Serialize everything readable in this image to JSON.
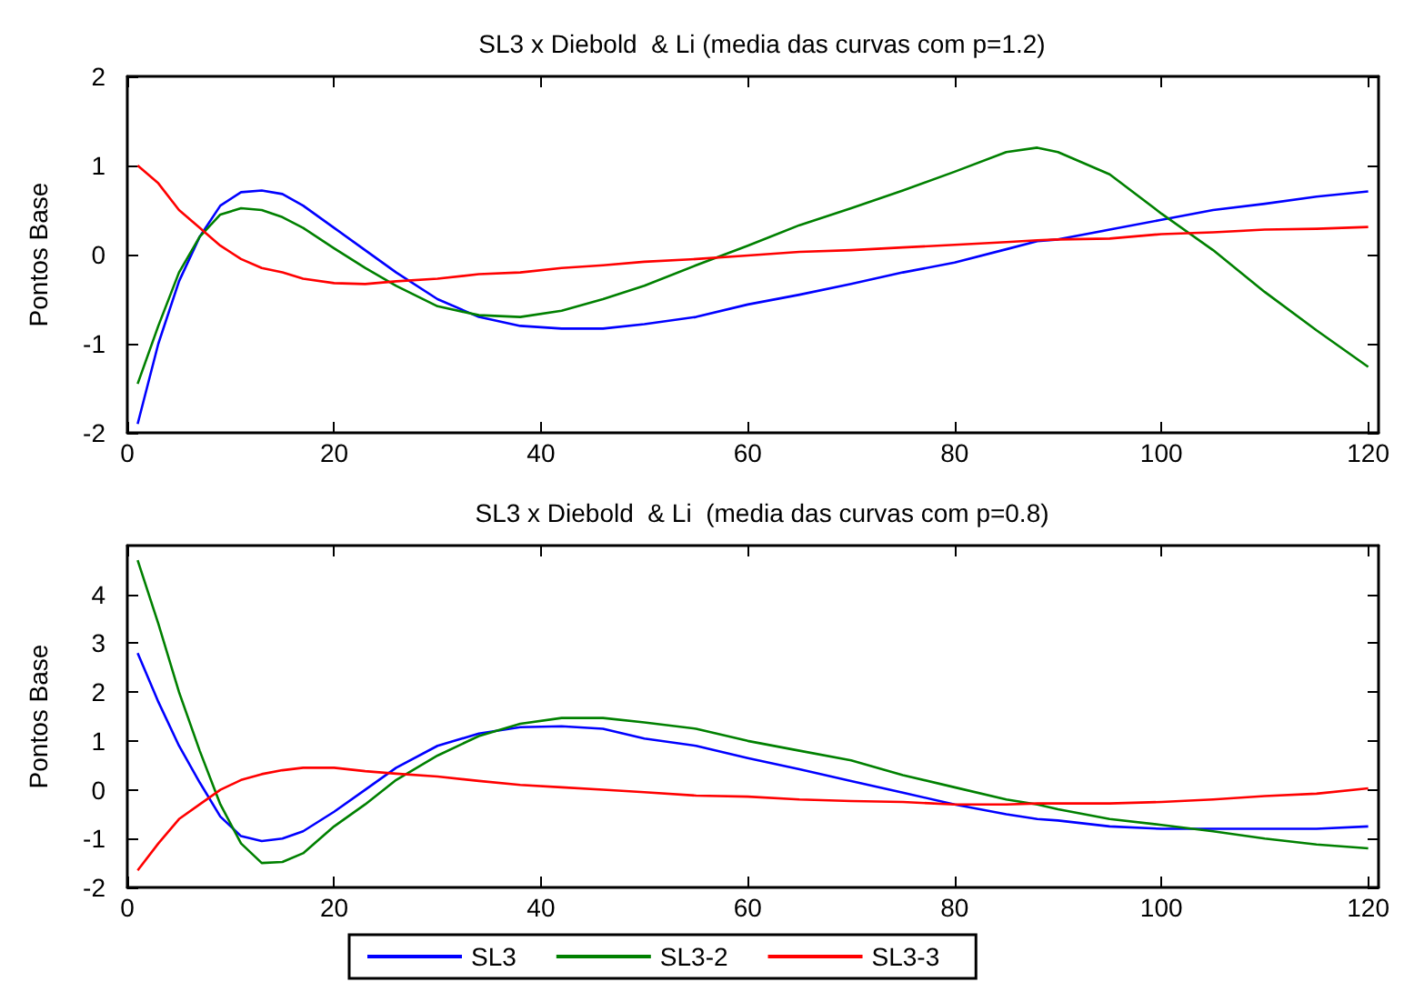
{
  "chart_data": [
    {
      "type": "line",
      "title": "SL3 x Diebold  & Li (media das curvas com p=1.2)",
      "ylabel": "Pontos Base",
      "x": [
        1,
        3,
        5,
        7,
        9,
        11,
        13,
        15,
        17,
        20,
        23,
        26,
        30,
        34,
        38,
        42,
        46,
        50,
        55,
        60,
        65,
        70,
        75,
        80,
        85,
        88,
        90,
        95,
        100,
        105,
        110,
        115,
        120
      ],
      "xlim": [
        0,
        121
      ],
      "xticks": [
        0,
        20,
        40,
        60,
        80,
        100,
        120
      ],
      "ylim": [
        -2,
        2
      ],
      "yticks": [
        -2,
        -1,
        0,
        1,
        2
      ],
      "grid": false,
      "legend": false,
      "marker": "none",
      "line_style": "solid",
      "series": [
        {
          "color": "#0000ff",
          "values": [
            -1.9,
            -1.0,
            -0.3,
            0.2,
            0.55,
            0.7,
            0.72,
            0.68,
            0.55,
            0.3,
            0.05,
            -0.2,
            -0.5,
            -0.7,
            -0.8,
            -0.83,
            -0.83,
            -0.78,
            -0.7,
            -0.56,
            -0.45,
            -0.33,
            -0.2,
            -0.09,
            0.06,
            0.15,
            0.17,
            0.28,
            0.39,
            0.5,
            0.57,
            0.65,
            0.71
          ]
        },
        {
          "color": "#008000",
          "values": [
            -1.45,
            -0.8,
            -0.2,
            0.2,
            0.45,
            0.52,
            0.5,
            0.42,
            0.3,
            0.07,
            -0.15,
            -0.35,
            -0.58,
            -0.68,
            -0.7,
            -0.63,
            -0.5,
            -0.35,
            -0.12,
            0.1,
            0.33,
            0.52,
            0.72,
            0.93,
            1.15,
            1.2,
            1.15,
            0.9,
            0.46,
            0.05,
            -0.42,
            -0.85,
            -1.26
          ]
        },
        {
          "color": "#ff0000",
          "values": [
            1.0,
            0.8,
            0.5,
            0.3,
            0.1,
            -0.05,
            -0.15,
            -0.2,
            -0.27,
            -0.32,
            -0.33,
            -0.3,
            -0.27,
            -0.22,
            -0.2,
            -0.15,
            -0.12,
            -0.08,
            -0.05,
            -0.01,
            0.03,
            0.05,
            0.08,
            0.11,
            0.14,
            0.16,
            0.17,
            0.18,
            0.23,
            0.25,
            0.28,
            0.29,
            0.31
          ]
        }
      ]
    },
    {
      "type": "line",
      "title": "SL3 x Diebold  & Li  (media das curvas com p=0.8)",
      "ylabel": "Pontos Base",
      "x": [
        1,
        3,
        5,
        7,
        9,
        11,
        13,
        15,
        17,
        20,
        23,
        26,
        30,
        34,
        38,
        42,
        46,
        50,
        55,
        60,
        65,
        70,
        75,
        80,
        85,
        88,
        90,
        95,
        100,
        105,
        110,
        115,
        120
      ],
      "xlim": [
        0,
        121
      ],
      "xticks": [
        0,
        20,
        40,
        60,
        80,
        100,
        120
      ],
      "ylim": [
        -2,
        5
      ],
      "yticks": [
        -2,
        -1,
        0,
        1,
        2,
        3,
        4
      ],
      "grid": false,
      "legend": "bottom",
      "marker": "none",
      "line_style": "solid",
      "series": [
        {
          "name": "SL3",
          "color": "#0000ff",
          "values": [
            2.8,
            1.8,
            0.9,
            0.15,
            -0.55,
            -0.95,
            -1.05,
            -1.0,
            -0.85,
            -0.45,
            0.0,
            0.45,
            0.9,
            1.15,
            1.28,
            1.3,
            1.25,
            1.05,
            0.9,
            0.65,
            0.42,
            0.18,
            -0.06,
            -0.3,
            -0.5,
            -0.6,
            -0.63,
            -0.75,
            -0.8,
            -0.8,
            -0.8,
            -0.8,
            -0.75
          ]
        },
        {
          "name": "SL3-2",
          "color": "#008000",
          "values": [
            4.7,
            3.4,
            2.0,
            0.8,
            -0.3,
            -1.1,
            -1.5,
            -1.48,
            -1.3,
            -0.75,
            -0.3,
            0.2,
            0.7,
            1.1,
            1.35,
            1.47,
            1.47,
            1.38,
            1.25,
            1.0,
            0.8,
            0.6,
            0.3,
            0.05,
            -0.2,
            -0.3,
            -0.4,
            -0.6,
            -0.72,
            -0.85,
            -1.0,
            -1.12,
            -1.2
          ]
        },
        {
          "name": "SL3-3",
          "color": "#ff0000",
          "values": [
            -1.65,
            -1.1,
            -0.6,
            -0.3,
            0.0,
            0.2,
            0.32,
            0.4,
            0.45,
            0.45,
            0.38,
            0.33,
            0.27,
            0.18,
            0.1,
            0.05,
            0.0,
            -0.05,
            -0.12,
            -0.14,
            -0.2,
            -0.23,
            -0.25,
            -0.3,
            -0.3,
            -0.28,
            -0.28,
            -0.28,
            -0.25,
            -0.2,
            -0.13,
            -0.08,
            0.03
          ]
        }
      ]
    }
  ]
}
